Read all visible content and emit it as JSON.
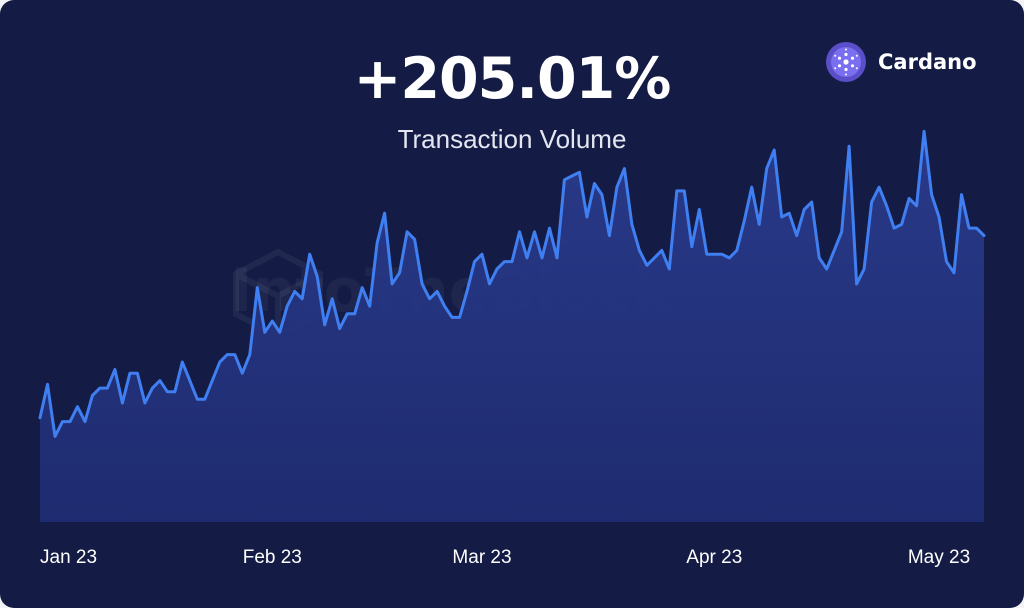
{
  "headline": "+205.01%",
  "subtitle": "Transaction Volume",
  "brand": {
    "name": "Cardano",
    "icon": "cardano-logo-icon"
  },
  "watermark": "IntoTheBlock",
  "colors": {
    "background": "#141c45",
    "line": "#3f7ff1",
    "area": "#22307a",
    "brand_purple": "#6b5fd8"
  },
  "chart_data": {
    "type": "area",
    "title": "Transaction Volume",
    "x_tick_labels": [
      "Jan 23",
      "Feb 23",
      "Mar 23",
      "Apr 23",
      "May 23"
    ],
    "x_tick_day_index": [
      0,
      31,
      59,
      90,
      120
    ],
    "ylim": [
      0,
      100
    ],
    "grid": false,
    "legend": "none",
    "series": [
      {
        "values": [
          28,
          37,
          23,
          27,
          27,
          31,
          27,
          34,
          36,
          36,
          41,
          32,
          40,
          40,
          32,
          36,
          38,
          35,
          35,
          43,
          38,
          33,
          33,
          38,
          43,
          45,
          45,
          40,
          45,
          63,
          51,
          54,
          51,
          58,
          62,
          60,
          72,
          66,
          53,
          60,
          52,
          56,
          56,
          63,
          58,
          75,
          83,
          64,
          67,
          78,
          76,
          64,
          60,
          62,
          58,
          55,
          55,
          62,
          70,
          72,
          64,
          68,
          70,
          70,
          78,
          71,
          78,
          71,
          79,
          71,
          92,
          93,
          94,
          82,
          91,
          88,
          77,
          90,
          95,
          80,
          73,
          69,
          71,
          73,
          68,
          89,
          89,
          74,
          84,
          72,
          72,
          72,
          71,
          73,
          81,
          90,
          80,
          95,
          100,
          82,
          83,
          77,
          84,
          86,
          71,
          68,
          73,
          78,
          101,
          64,
          68,
          86,
          90,
          85,
          79,
          80,
          87,
          85,
          105,
          88,
          82,
          70,
          67,
          88,
          79,
          79,
          77
        ]
      }
    ]
  }
}
